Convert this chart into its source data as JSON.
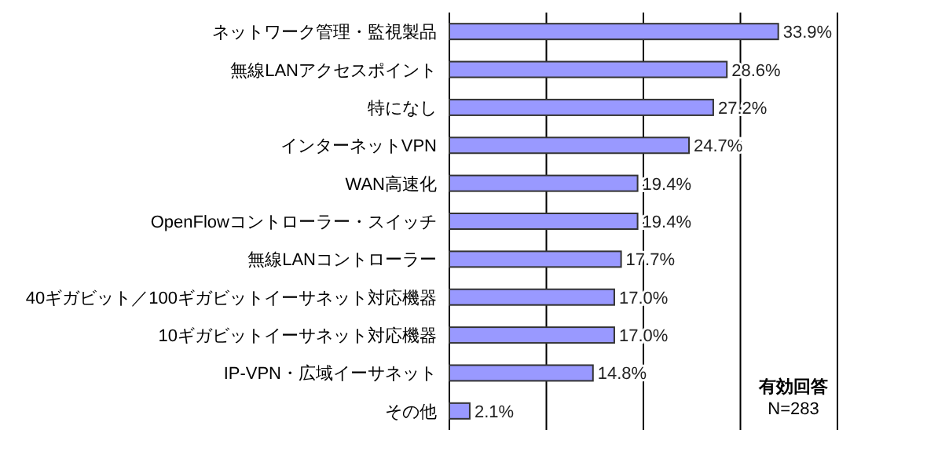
{
  "chart_data": {
    "type": "bar",
    "orientation": "horizontal",
    "categories": [
      "ネットワーク管理・監視製品",
      "無線LANアクセスポイント",
      "特になし",
      "インターネットVPN",
      "WAN高速化",
      "OpenFlowコントローラー・スイッチ",
      "無線LANコントローラー",
      "40ギガビット／100ギガビットイーサネット対応機器",
      "10ギガビットイーサネット対応機器",
      "IP-VPN・広域イーサネット",
      "その他"
    ],
    "values": [
      33.9,
      28.6,
      27.2,
      24.7,
      19.4,
      19.4,
      17.7,
      17.0,
      17.0,
      14.8,
      2.1
    ],
    "value_labels": [
      "33.9%",
      "28.6%",
      "27.2%",
      "24.7%",
      "19.4%",
      "19.4%",
      "17.7%",
      "17.0%",
      "17.0%",
      "14.8%",
      "2.1%"
    ],
    "color": "#9999ff",
    "xlim": [
      0,
      40
    ],
    "xticks": [
      {
        "value": 0,
        "label": null
      },
      {
        "value": 10,
        "label": null
      },
      {
        "value": 20,
        "label": null
      },
      {
        "value": 30,
        "label": null
      },
      {
        "value": 40,
        "label": null
      }
    ],
    "grid": "x",
    "tick_labels": "y",
    "annotations": [
      "有効回答",
      "N=283"
    ]
  }
}
